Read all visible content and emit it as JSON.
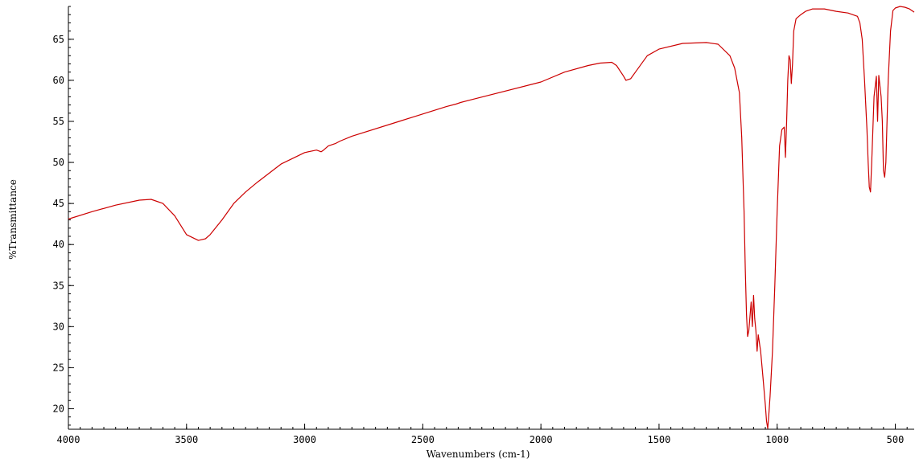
{
  "chart_data": {
    "type": "line",
    "title": "",
    "xlabel": "Wavenumbers (cm-1)",
    "ylabel": "%Transmittance",
    "xlim": [
      4000,
      420
    ],
    "ylim": [
      17.5,
      69
    ],
    "x_reversed": true,
    "grid": false,
    "legend": "none",
    "x_ticks": [
      4000,
      3500,
      3000,
      2500,
      2000,
      1500,
      1000,
      500
    ],
    "x_tick_labels": [
      "4000",
      "3500",
      "3000",
      "2500",
      "2000",
      "1500",
      "1000",
      "500"
    ],
    "y_ticks": [
      20,
      25,
      30,
      35,
      40,
      45,
      50,
      55,
      60,
      65
    ],
    "y_tick_labels": [
      "20",
      "25",
      "30",
      "35",
      "40",
      "45",
      "50",
      "55",
      "60",
      "65"
    ],
    "series": [
      {
        "color": "#cc0000",
        "x": [
          4000,
          3900,
          3800,
          3700,
          3650,
          3600,
          3550,
          3500,
          3450,
          3420,
          3400,
          3350,
          3300,
          3250,
          3200,
          3100,
          3000,
          2950,
          2930,
          2920,
          2900,
          2870,
          2850,
          2800,
          2600,
          2400,
          2360,
          2340,
          2300,
          2000,
          1900,
          1800,
          1750,
          1700,
          1680,
          1650,
          1640,
          1620,
          1600,
          1550,
          1500,
          1400,
          1300,
          1250,
          1200,
          1180,
          1160,
          1150,
          1140,
          1135,
          1130,
          1125,
          1120,
          1110,
          1105,
          1100,
          1095,
          1090,
          1085,
          1080,
          1070,
          1060,
          1050,
          1045,
          1040,
          1035,
          1030,
          1020,
          1010,
          1000,
          990,
          980,
          970,
          965,
          960,
          955,
          950,
          945,
          940,
          935,
          930,
          920,
          900,
          880,
          850,
          800,
          750,
          700,
          660,
          650,
          640,
          630,
          620,
          615,
          610,
          605,
          600,
          590,
          580,
          575,
          570,
          560,
          555,
          550,
          545,
          540,
          530,
          520,
          510,
          500,
          480,
          460,
          440,
          420
        ],
        "y": [
          43.1,
          44.0,
          44.8,
          45.4,
          45.5,
          45.0,
          43.5,
          41.2,
          40.5,
          40.7,
          41.2,
          43.0,
          45.0,
          46.4,
          47.6,
          49.8,
          51.2,
          51.5,
          51.3,
          51.5,
          52.0,
          52.3,
          52.6,
          53.2,
          55.0,
          56.8,
          57.1,
          57.3,
          57.6,
          59.8,
          61.0,
          61.8,
          62.1,
          62.2,
          61.8,
          60.5,
          60.0,
          60.2,
          61.0,
          63.0,
          63.8,
          64.5,
          64.6,
          64.4,
          63.0,
          61.5,
          58.5,
          53.0,
          44.0,
          37.0,
          31.5,
          28.8,
          29.5,
          33.0,
          30.0,
          33.8,
          31.0,
          29.5,
          27.0,
          29.0,
          27.0,
          23.8,
          20.5,
          18.5,
          17.6,
          19.5,
          21.5,
          27.0,
          35.0,
          44.0,
          52.0,
          54.0,
          54.3,
          50.6,
          55.0,
          60.0,
          63.0,
          62.5,
          59.6,
          62.0,
          66.0,
          67.5,
          68.0,
          68.4,
          68.7,
          68.7,
          68.4,
          68.2,
          67.8,
          67.0,
          65.0,
          60.0,
          54.0,
          50.0,
          47.0,
          46.4,
          50.0,
          58.0,
          60.5,
          55.0,
          60.6,
          58.0,
          55.0,
          49.0,
          48.2,
          50.0,
          60.0,
          66.0,
          68.5,
          68.8,
          69.0,
          68.9,
          68.7,
          68.3
        ]
      }
    ]
  }
}
